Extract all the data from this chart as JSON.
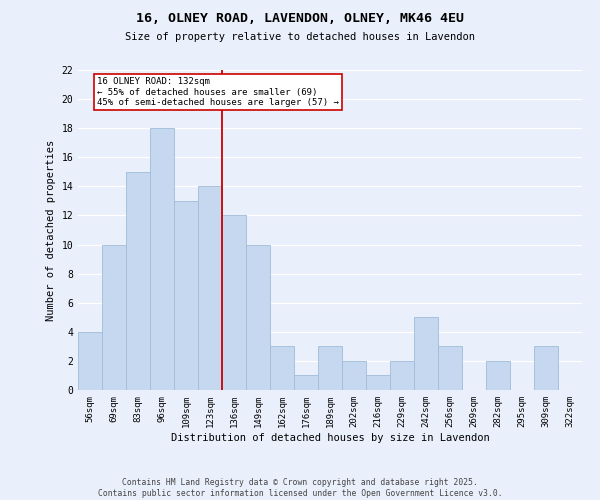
{
  "title1": "16, OLNEY ROAD, LAVENDON, OLNEY, MK46 4EU",
  "title2": "Size of property relative to detached houses in Lavendon",
  "xlabel": "Distribution of detached houses by size in Lavendon",
  "ylabel": "Number of detached properties",
  "categories": [
    "56sqm",
    "69sqm",
    "83sqm",
    "96sqm",
    "109sqm",
    "123sqm",
    "136sqm",
    "149sqm",
    "162sqm",
    "176sqm",
    "189sqm",
    "202sqm",
    "216sqm",
    "229sqm",
    "242sqm",
    "256sqm",
    "269sqm",
    "282sqm",
    "295sqm",
    "309sqm",
    "322sqm"
  ],
  "values": [
    4,
    10,
    15,
    18,
    13,
    14,
    12,
    10,
    3,
    1,
    3,
    2,
    1,
    2,
    5,
    3,
    0,
    2,
    0,
    3,
    0
  ],
  "bar_color": "#c5d8f0",
  "bar_edge_color": "#a0bcd8",
  "bar_width": 1.0,
  "vline_index": 6,
  "vline_color": "#cc0000",
  "annotation_text": "16 OLNEY ROAD: 132sqm\n← 55% of detached houses are smaller (69)\n45% of semi-detached houses are larger (57) →",
  "annotation_box_color": "#ffffff",
  "annotation_edge_color": "#cc0000",
  "ylim": [
    0,
    22
  ],
  "yticks": [
    0,
    2,
    4,
    6,
    8,
    10,
    12,
    14,
    16,
    18,
    20,
    22
  ],
  "background_color": "#eaf0fb",
  "grid_color": "#ffffff",
  "footer1": "Contains HM Land Registry data © Crown copyright and database right 2025.",
  "footer2": "Contains public sector information licensed under the Open Government Licence v3.0."
}
